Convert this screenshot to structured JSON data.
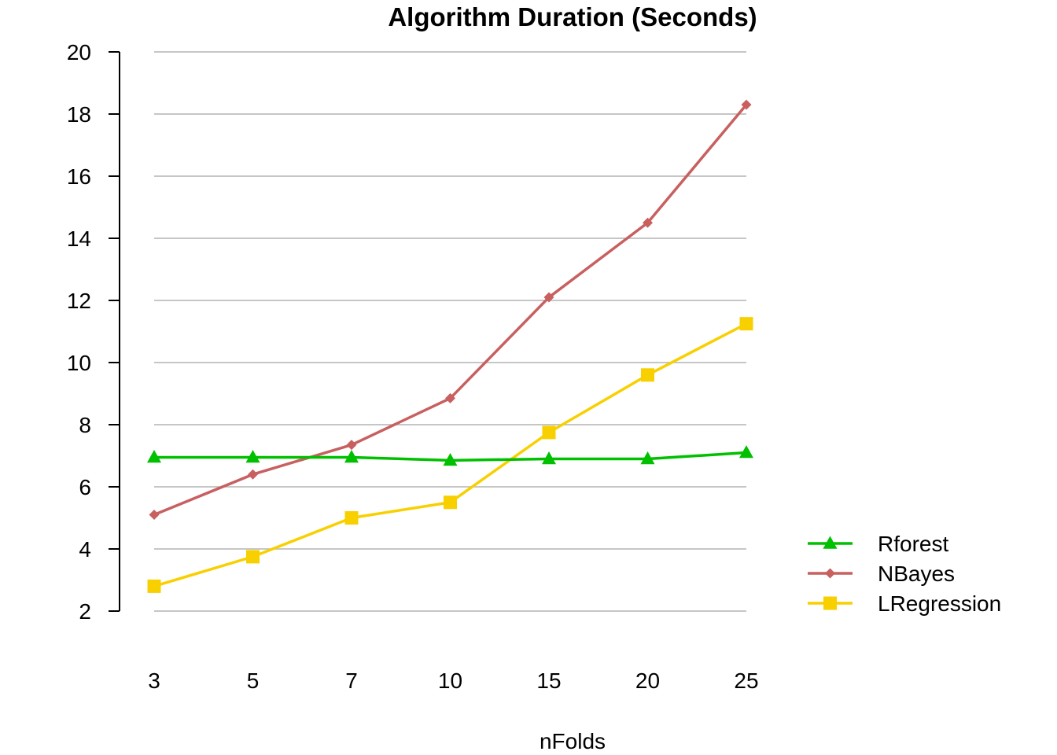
{
  "chart_data": {
    "type": "line",
    "title": "Algorithm Duration (Seconds)",
    "xlabel": "nFolds",
    "ylabel": "",
    "categories": [
      "3",
      "5",
      "7",
      "10",
      "15",
      "20",
      "25"
    ],
    "ylim": [
      2,
      20
    ],
    "yticks": [
      "2",
      "4",
      "6",
      "8",
      "10",
      "12",
      "14",
      "16",
      "18",
      "20"
    ],
    "grid": "horizontal",
    "legend_position": "right",
    "series": [
      {
        "name": "Rforest",
        "color": "#00c000",
        "marker": "triangle",
        "values": [
          6.95,
          6.95,
          6.95,
          6.85,
          6.9,
          6.9,
          7.1
        ]
      },
      {
        "name": "NBayes",
        "color": "#c86060",
        "marker": "diamond",
        "values": [
          5.1,
          6.4,
          7.35,
          8.85,
          12.1,
          14.5,
          18.3
        ]
      },
      {
        "name": "LRegression",
        "color": "#f8d000",
        "marker": "square",
        "values": [
          2.8,
          3.75,
          5.0,
          5.5,
          7.75,
          9.6,
          11.25
        ]
      }
    ]
  }
}
